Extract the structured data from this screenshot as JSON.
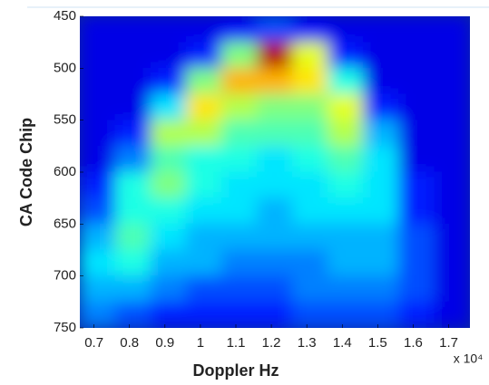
{
  "chart_data": {
    "type": "heatmap",
    "xlabel": "Doppler Hz",
    "ylabel": "CA Code Chip",
    "x_multiplier": "x 10⁴",
    "xlim": [
      0.66,
      1.76
    ],
    "xticks": [
      0.7,
      0.8,
      0.9,
      1,
      1.1,
      1.2,
      1.3,
      1.4,
      1.5,
      1.6,
      1.7
    ],
    "ylim": [
      450,
      750
    ],
    "yticks": [
      450,
      500,
      550,
      600,
      650,
      700,
      750
    ],
    "y_inverted": true,
    "colormap": "jet",
    "xbins": [
      0.66,
      0.76,
      0.86,
      0.96,
      1.06,
      1.16,
      1.26,
      1.36,
      1.46,
      1.56,
      1.66,
      1.76
    ],
    "ybins": [
      450,
      475,
      500,
      525,
      550,
      575,
      600,
      625,
      650,
      675,
      700,
      725,
      750
    ],
    "z": [
      [
        0.1,
        0.1,
        0.1,
        0.1,
        0.12,
        0.2,
        0.12,
        0.1,
        0.1,
        0.1,
        0.1
      ],
      [
        0.1,
        0.1,
        0.1,
        0.15,
        0.5,
        0.95,
        0.6,
        0.15,
        0.1,
        0.1,
        0.1
      ],
      [
        0.1,
        0.1,
        0.15,
        0.5,
        0.7,
        0.7,
        0.65,
        0.4,
        0.1,
        0.1,
        0.1
      ],
      [
        0.1,
        0.1,
        0.35,
        0.65,
        0.55,
        0.5,
        0.5,
        0.6,
        0.15,
        0.1,
        0.1
      ],
      [
        0.1,
        0.15,
        0.55,
        0.55,
        0.45,
        0.45,
        0.45,
        0.55,
        0.3,
        0.1,
        0.1
      ],
      [
        0.1,
        0.25,
        0.45,
        0.4,
        0.4,
        0.35,
        0.4,
        0.45,
        0.35,
        0.1,
        0.1
      ],
      [
        0.15,
        0.4,
        0.5,
        0.4,
        0.35,
        0.35,
        0.35,
        0.4,
        0.35,
        0.15,
        0.1
      ],
      [
        0.2,
        0.4,
        0.4,
        0.35,
        0.35,
        0.3,
        0.35,
        0.35,
        0.35,
        0.15,
        0.1
      ],
      [
        0.3,
        0.45,
        0.35,
        0.3,
        0.3,
        0.3,
        0.3,
        0.3,
        0.3,
        0.2,
        0.1
      ],
      [
        0.35,
        0.4,
        0.3,
        0.3,
        0.25,
        0.25,
        0.25,
        0.3,
        0.3,
        0.2,
        0.1
      ],
      [
        0.3,
        0.3,
        0.25,
        0.2,
        0.2,
        0.2,
        0.25,
        0.25,
        0.25,
        0.2,
        0.1
      ],
      [
        0.25,
        0.2,
        0.15,
        0.15,
        0.15,
        0.15,
        0.2,
        0.2,
        0.2,
        0.15,
        0.1
      ]
    ]
  }
}
